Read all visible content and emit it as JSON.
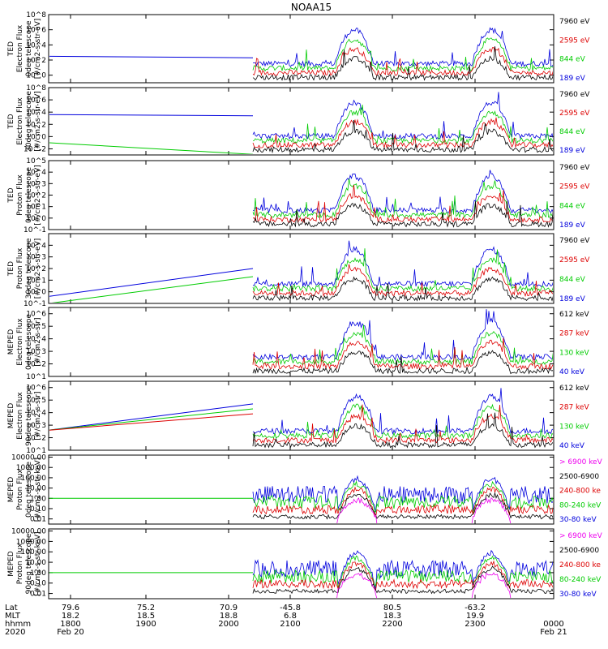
{
  "title": "NOAA15",
  "chart_data": [
    {
      "type": "line",
      "ylabel": [
        "TED",
        "Electron Flux",
        "0deg telescope",
        "[#/cm2-s-str-eV]"
      ],
      "yticks": [
        "10^0",
        "10^2",
        "10^4",
        "10^6",
        "10^8"
      ],
      "ylim_exp": [
        -1,
        8
      ],
      "legend": [
        {
          "label": "7960 eV",
          "color": "#000000"
        },
        {
          "label": "2595 eV",
          "color": "#dd0000"
        },
        {
          "label": "844 eV",
          "color": "#00cc00"
        },
        {
          "label": "189 eV",
          "color": "#0000dd"
        }
      ]
    },
    {
      "type": "line",
      "ylabel": [
        "TED",
        "Electron Flux",
        "30deg telescope",
        "[#/cm2-s-str-eV]"
      ],
      "yticks": [
        "10^-2",
        "10^0",
        "10^2",
        "10^4",
        "10^6",
        "10^8"
      ],
      "ylim_exp": [
        -3,
        8
      ],
      "legend": [
        {
          "label": "7960 eV",
          "color": "#000000"
        },
        {
          "label": "2595 eV",
          "color": "#dd0000"
        },
        {
          "label": "844 eV",
          "color": "#00cc00"
        },
        {
          "label": "189 eV",
          "color": "#0000dd"
        }
      ]
    },
    {
      "type": "line",
      "ylabel": [
        "TED",
        "Proton Flux",
        "0deg telescope",
        "[#/cm2-s-str-eV]"
      ],
      "yticks": [
        "10^-1",
        "10^0",
        "10^1",
        "10^2",
        "10^3",
        "10^4",
        "10^5"
      ],
      "ylim_exp": [
        -1,
        5
      ],
      "legend": [
        {
          "label": "7960 eV",
          "color": "#000000"
        },
        {
          "label": "2595 eV",
          "color": "#dd0000"
        },
        {
          "label": "844 eV",
          "color": "#00cc00"
        },
        {
          "label": "189 eV",
          "color": "#0000dd"
        }
      ]
    },
    {
      "type": "line",
      "ylabel": [
        "TED",
        "Proton Flux",
        "30deg telescope",
        "[#/cm2-s-str-eV]"
      ],
      "yticks": [
        "10^-1",
        "10^0",
        "10^1",
        "10^2",
        "10^3",
        "10^4"
      ],
      "ylim_exp": [
        -1,
        5
      ],
      "legend": [
        {
          "label": "7960 eV",
          "color": "#000000"
        },
        {
          "label": "2595 eV",
          "color": "#dd0000"
        },
        {
          "label": "844 eV",
          "color": "#00cc00"
        },
        {
          "label": "189 eV",
          "color": "#0000dd"
        }
      ]
    },
    {
      "type": "line",
      "ylabel": [
        "MEPED",
        "Electron Flux",
        "0deg telescope",
        "[#/cm2-s-str]"
      ],
      "yticks": [
        "10^1",
        "10^2",
        "10^3",
        "10^4",
        "10^5",
        "10^6"
      ],
      "ylim_exp": [
        1,
        6.5
      ],
      "legend": [
        {
          "label": "612 keV",
          "color": "#000000"
        },
        {
          "label": "287 keV",
          "color": "#dd0000"
        },
        {
          "label": "130 keV",
          "color": "#00cc00"
        },
        {
          "label": "40 keV",
          "color": "#0000dd"
        }
      ]
    },
    {
      "type": "line",
      "ylabel": [
        "MEPED",
        "Electron Flux",
        "90deg telescope",
        "[#/cm2-s-str]"
      ],
      "yticks": [
        "10^1",
        "10^2",
        "10^3",
        "10^4",
        "10^5",
        "10^6"
      ],
      "ylim_exp": [
        1,
        6.5
      ],
      "legend": [
        {
          "label": "612 keV",
          "color": "#000000"
        },
        {
          "label": "287 keV",
          "color": "#dd0000"
        },
        {
          "label": "130 keV",
          "color": "#00cc00"
        },
        {
          "label": "40 keV",
          "color": "#0000dd"
        }
      ]
    },
    {
      "type": "line",
      "ylabel": [
        "MEPED",
        "Proton Flux",
        "0deg telescope",
        "[#/cm2-s-str-keV]"
      ],
      "yticks": [
        "0.01",
        "0.10",
        "1.00",
        "10.00",
        "100.00",
        "1000.00",
        "10000.00"
      ],
      "ylim_exp": [
        -2.5,
        4.2
      ],
      "legend": [
        {
          "label": "> 6900 keV",
          "color": "#ee00ee"
        },
        {
          "label": "2500-6900",
          "color": "#000000"
        },
        {
          "label": "240-800 ke",
          "color": "#dd0000"
        },
        {
          "label": "80-240 keV",
          "color": "#00cc00"
        },
        {
          "label": "30-80 keV",
          "color": "#0000dd"
        }
      ]
    },
    {
      "type": "line",
      "ylabel": [
        "MEPED",
        "Proton Flux",
        "90deg telescope",
        "[#/cm2-s-str-keV]"
      ],
      "yticks": [
        "0.01",
        "0.10",
        "1.00",
        "10.00",
        "100.00",
        "1000.00",
        "10000.00"
      ],
      "ylim_exp": [
        -2.5,
        4.2
      ],
      "legend": [
        {
          "label": "> 6900 keV",
          "color": "#ee00ee"
        },
        {
          "label": "2500-6900",
          "color": "#000000"
        },
        {
          "label": "240-800 ke",
          "color": "#dd0000"
        },
        {
          "label": "80-240 keV",
          "color": "#00cc00"
        },
        {
          "label": "30-80 keV",
          "color": "#0000dd"
        }
      ]
    }
  ],
  "xaxis": {
    "row_labels": [
      "Lat",
      "MLT",
      "hhmm",
      "2020"
    ],
    "columns": [
      {
        "lat": "79.6",
        "mlt": "18.2",
        "hhmm": "1800",
        "date": "Feb 20"
      },
      {
        "lat": "75.2",
        "mlt": "18.5",
        "hhmm": "1900",
        "date": ""
      },
      {
        "lat": "70.9",
        "mlt": "18.8",
        "hhmm": "2000",
        "date": ""
      },
      {
        "lat": "-45.8",
        "mlt": "6.8",
        "hhmm": "2100",
        "date": ""
      },
      {
        "lat": "80.5",
        "mlt": "18.3",
        "hhmm": "2200",
        "date": ""
      },
      {
        "lat": "-63.2",
        "mlt": "19.9",
        "hhmm": "2300",
        "date": ""
      },
      {
        "lat": "",
        "mlt": "",
        "hhmm": "0000",
        "date": "Feb 21"
      }
    ]
  }
}
